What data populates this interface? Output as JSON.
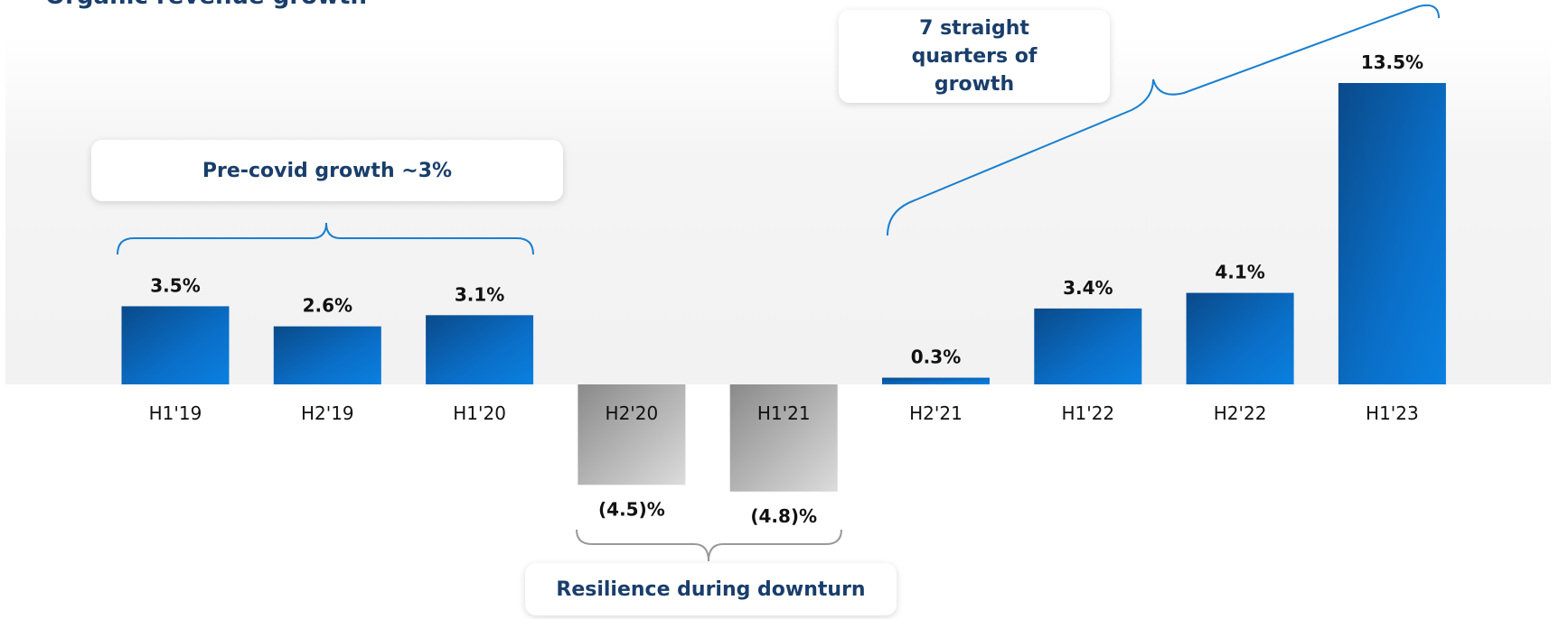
{
  "chart_data": {
    "type": "bar",
    "title": "Organic revenue growth",
    "categories": [
      "H1'19",
      "H2'19",
      "H1'20",
      "H2'20",
      "H1'21",
      "H2'21",
      "H1'22",
      "H2'22",
      "H1'23"
    ],
    "values": [
      3.5,
      2.6,
      3.1,
      -4.5,
      -4.8,
      0.3,
      3.4,
      4.1,
      13.5
    ],
    "value_labels": [
      "3.5%",
      "2.6%",
      "3.1%",
      "(4.5)%",
      "(4.8)%",
      "0.3%",
      "3.4%",
      "4.1%",
      "13.5%"
    ],
    "colors": {
      "positive": "#0a6fc8",
      "negative": "#a8a8a8"
    },
    "annotations": [
      "Pre-covid growth ~3%",
      "7 straight quarters of growth",
      "Resilience during downturn"
    ]
  }
}
